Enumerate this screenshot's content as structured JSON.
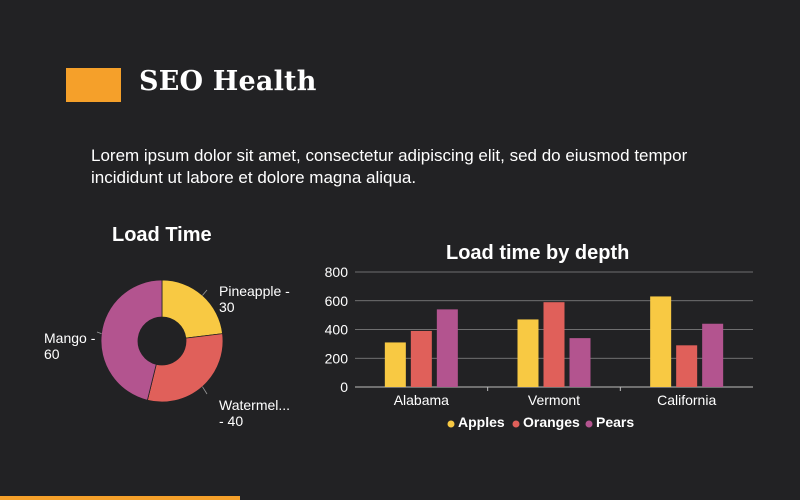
{
  "header": {
    "title": "SEO Health",
    "body_line1": "Lorem ipsum dolor sit amet, consectetur adipiscing elit, sed do eiusmod tempor",
    "body_line2": "incididunt ut labore et dolore magna aliqua.",
    "accent_color": "#f5a02a"
  },
  "chart_data": [
    {
      "type": "pie",
      "donut": true,
      "title": "Load Time",
      "slices": [
        {
          "label_line1": "Pineapple -",
          "label_line2": "30",
          "name": "Pineapple",
          "value": 30,
          "color": "#f8c943"
        },
        {
          "label_line1": "Watermel...",
          "label_line2": "- 40",
          "name": "Watermelon",
          "value": 40,
          "color": "#e0605a"
        },
        {
          "label_line1": "Mango -",
          "label_line2": "60",
          "name": "Mango",
          "value": 60,
          "color": "#b3548f"
        }
      ]
    },
    {
      "type": "bar",
      "title": "Load time by depth",
      "categories": [
        "Alabama",
        "Vermont",
        "California"
      ],
      "series": [
        {
          "name": "Apples",
          "values": [
            310,
            470,
            630
          ],
          "color": "#f8c943"
        },
        {
          "name": "Oranges",
          "values": [
            390,
            590,
            290
          ],
          "color": "#e0605a"
        },
        {
          "name": "Pears",
          "values": [
            540,
            340,
            440
          ],
          "color": "#b3548f"
        }
      ],
      "yticks": [
        "0",
        "200",
        "400",
        "600",
        "800"
      ],
      "ylim": [
        0,
        800
      ],
      "grid": true,
      "legend": "bottom",
      "xlabel": "",
      "ylabel": ""
    }
  ]
}
